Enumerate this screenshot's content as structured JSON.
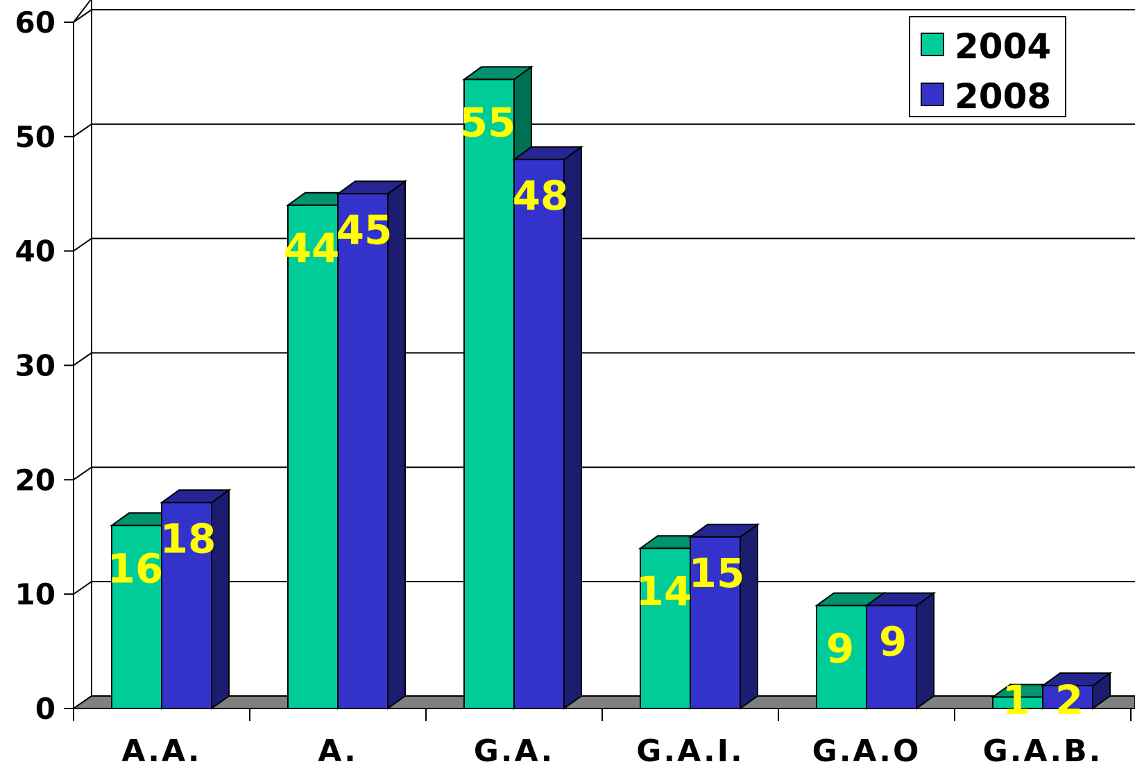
{
  "chart_data": {
    "type": "bar",
    "categories": [
      "A.A.",
      "A.",
      "G.A.",
      "G.A.I.",
      "G.A.O",
      "G.A.B."
    ],
    "series": [
      {
        "name": "2004",
        "values": [
          16,
          44,
          55,
          14,
          9,
          1
        ],
        "color": "#00cc99"
      },
      {
        "name": "2008",
        "values": [
          18,
          45,
          48,
          15,
          9,
          2
        ],
        "color": "#3333cc"
      }
    ],
    "data_labels": [
      [
        "16",
        "44",
        "55",
        "14",
        "9",
        "1"
      ],
      [
        "18",
        "45",
        "48",
        "15",
        "9",
        "2"
      ]
    ],
    "y_ticks": [
      "0",
      "10",
      "20",
      "30",
      "40",
      "50",
      "60"
    ],
    "ylim": [
      0,
      60
    ],
    "grid": true,
    "legend_position": "top-right",
    "colors": {
      "floor": "#808080",
      "label": "#ffff00"
    }
  }
}
